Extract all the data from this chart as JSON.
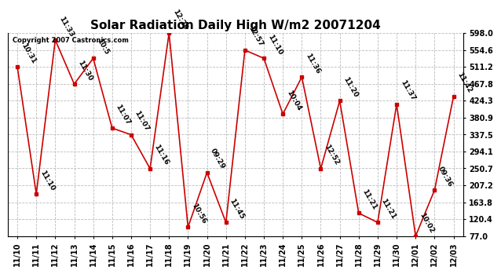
{
  "title": "Solar Radiation Daily High W/m2 20071204",
  "copyright": "Copyright 2007 Castronics.com",
  "x_labels": [
    "11/10",
    "11/11",
    "11/12",
    "11/13",
    "11/14",
    "11/15",
    "11/16",
    "11/17",
    "11/18",
    "11/19",
    "11/20",
    "11/21",
    "11/22",
    "11/23",
    "11/24",
    "11/25",
    "11/26",
    "11/27",
    "11/28",
    "11/29",
    "11/30",
    "12/01",
    "12/02",
    "12/03"
  ],
  "y_values": [
    511,
    185,
    580,
    467,
    533,
    354,
    337,
    250,
    598,
    100,
    240,
    112,
    554,
    533,
    390,
    485,
    250,
    424,
    136,
    112,
    415,
    77,
    195,
    435
  ],
  "point_labels": [
    "10:31",
    "11:10",
    "11:33",
    "11:30",
    "10:5",
    "11:07",
    "11:07",
    "11:16",
    "12:29",
    "10:56",
    "09:29",
    "11:45",
    "12:57",
    "11:10",
    "10:04",
    "11:36",
    "12:52",
    "11:20",
    "11:21",
    "11:21",
    "11:37",
    "10:02",
    "09:36",
    "11:42"
  ],
  "y_ticks": [
    77.0,
    120.4,
    163.8,
    207.2,
    250.7,
    294.1,
    337.5,
    380.9,
    424.3,
    467.8,
    511.2,
    554.6,
    598.0
  ],
  "y_tick_labels": [
    "77.0",
    "120.4",
    "163.8",
    "207.2",
    "250.7",
    "294.1",
    "337.5",
    "380.9",
    "424.3",
    "467.8",
    "511.2",
    "554.6",
    "598.0"
  ],
  "line_color": "#cc0000",
  "marker_color": "#cc0000",
  "background_color": "#ffffff",
  "plot_bg_color": "#ffffff",
  "grid_color": "#bbbbbb",
  "title_fontsize": 11,
  "label_fontsize": 6.5,
  "tick_fontsize": 7,
  "ylim": [
    77.0,
    598.0
  ]
}
